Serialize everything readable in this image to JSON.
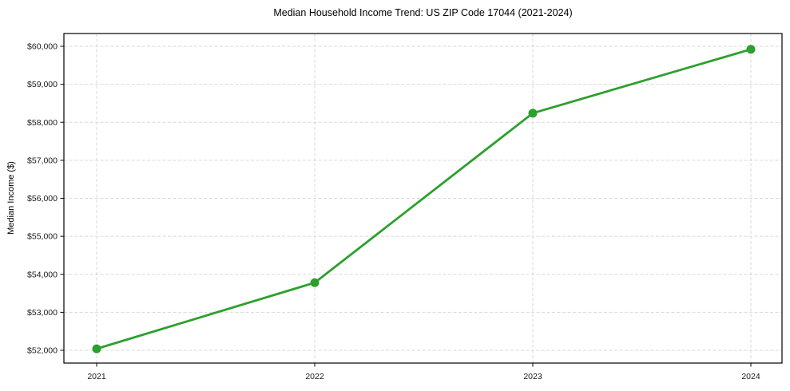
{
  "chart_data": {
    "type": "line",
    "title": "Median Household Income Trend: US ZIP Code 17044 (2021-2024)",
    "xlabel": "",
    "ylabel": "Median Income ($)",
    "categories": [
      "2021",
      "2022",
      "2023",
      "2024"
    ],
    "series": [
      {
        "values": [
          52040,
          53780,
          58240,
          59920
        ],
        "color": "#2ca02c",
        "marker": "circle",
        "marker_radius": 5.5,
        "line_width": 2.8
      }
    ],
    "y_tick_values": [
      52000,
      53000,
      54000,
      55000,
      56000,
      57000,
      58000,
      59000,
      60000
    ],
    "y_tick_labels": [
      "$52,000",
      "$53,000",
      "$54,000",
      "$55,000",
      "$56,000",
      "$57,000",
      "$58,000",
      "$59,000",
      "$60,000"
    ],
    "ylim": [
      51700,
      60350
    ],
    "grid": true,
    "grid_style": "dashed",
    "legend_position": "none",
    "colors": {
      "line": "#2ca02c",
      "grid": "#d9d9d9",
      "spine": "#000000",
      "tick_text": "#1a1a1a",
      "background": "#ffffff"
    }
  }
}
